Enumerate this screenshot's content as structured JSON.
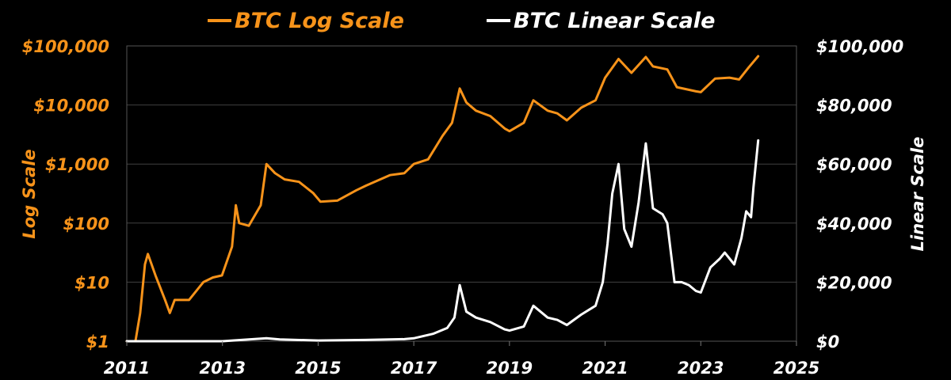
{
  "colors": {
    "log": "#f7931a",
    "linear": "#ffffff",
    "background": "#000000",
    "grid": "#404040"
  },
  "legend": [
    {
      "label": "BTC Log Scale",
      "color": "#f7931a"
    },
    {
      "label": "BTC Linear Scale",
      "color": "#ffffff"
    }
  ],
  "chart_data": {
    "type": "line",
    "ylabel_left": "Log Scale",
    "ylabel_right": "Linear Scale",
    "xlim": [
      2011,
      2025
    ],
    "xticks": [
      "2011",
      "2013",
      "2015",
      "2017",
      "2019",
      "2021",
      "2023",
      "2025"
    ],
    "yticks_left": [
      "$1",
      "$10",
      "$100",
      "$1,000",
      "$10,000",
      "$100,000"
    ],
    "ylim_left": [
      1,
      100000
    ],
    "yscale_left": "log",
    "yticks_right": [
      "$0",
      "$20,000",
      "$40,000",
      "$60,000",
      "$80,000",
      "$100,000"
    ],
    "ylim_right": [
      0,
      100000
    ],
    "grid": "horizontal",
    "legend_position": "top",
    "series": [
      {
        "name": "BTC Log Scale",
        "axis": "left",
        "color": "#f7931a",
        "x": [
          2011.0,
          2011.12,
          2011.18,
          2011.28,
          2011.38,
          2011.44,
          2011.6,
          2011.8,
          2011.9,
          2012.0,
          2012.3,
          2012.6,
          2012.8,
          2012.99,
          2013.2,
          2013.28,
          2013.35,
          2013.55,
          2013.8,
          2013.92,
          2014.1,
          2014.3,
          2014.6,
          2014.9,
          2015.05,
          2015.4,
          2015.8,
          2016.0,
          2016.5,
          2016.8,
          2017.0,
          2017.3,
          2017.6,
          2017.8,
          2017.96,
          2018.1,
          2018.3,
          2018.6,
          2018.9,
          2019.0,
          2019.3,
          2019.5,
          2019.8,
          2020.0,
          2020.2,
          2020.5,
          2020.8,
          2021.0,
          2021.28,
          2021.55,
          2021.85,
          2022.0,
          2022.3,
          2022.5,
          2022.9,
          2023.0,
          2023.3,
          2023.6,
          2023.8,
          2024.0,
          2024.2
        ],
        "y": [
          1,
          1,
          1,
          3,
          20,
          30,
          13,
          5,
          3,
          5,
          5,
          10,
          12,
          13,
          40,
          200,
          100,
          90,
          200,
          1000,
          700,
          550,
          500,
          320,
          230,
          240,
          360,
          430,
          650,
          700,
          1000,
          1200,
          3000,
          5000,
          19000,
          11000,
          8000,
          6500,
          4000,
          3600,
          5000,
          12000,
          8000,
          7200,
          5500,
          9000,
          12000,
          29000,
          60000,
          35000,
          65000,
          45000,
          40000,
          20000,
          17000,
          16500,
          28000,
          29000,
          27000,
          43000,
          67000
        ]
      },
      {
        "name": "BTC Linear Scale",
        "axis": "right",
        "color": "#ffffff",
        "x": [
          2011.0,
          2012.0,
          2013.0,
          2013.92,
          2014.2,
          2015.0,
          2016.0,
          2016.8,
          2017.0,
          2017.4,
          2017.7,
          2017.85,
          2017.96,
          2018.1,
          2018.3,
          2018.6,
          2018.9,
          2019.0,
          2019.3,
          2019.5,
          2019.8,
          2020.0,
          2020.2,
          2020.5,
          2020.8,
          2020.95,
          2021.05,
          2021.15,
          2021.28,
          2021.4,
          2021.55,
          2021.7,
          2021.85,
          2022.0,
          2022.2,
          2022.3,
          2022.45,
          2022.6,
          2022.75,
          2022.9,
          2023.0,
          2023.2,
          2023.4,
          2023.5,
          2023.7,
          2023.85,
          2023.95,
          2024.05,
          2024.1,
          2024.2
        ],
        "y": [
          0,
          5,
          13,
          1000,
          600,
          250,
          430,
          700,
          1000,
          2500,
          4500,
          8000,
          19000,
          10000,
          8000,
          6500,
          4000,
          3600,
          5000,
          12000,
          8000,
          7200,
          5500,
          9000,
          12000,
          20000,
          33000,
          50000,
          60000,
          38000,
          32000,
          47000,
          67000,
          45000,
          43000,
          40000,
          20000,
          20000,
          19000,
          17000,
          16500,
          25000,
          28000,
          30000,
          26000,
          35000,
          44000,
          42000,
          52000,
          68000
        ]
      }
    ]
  }
}
